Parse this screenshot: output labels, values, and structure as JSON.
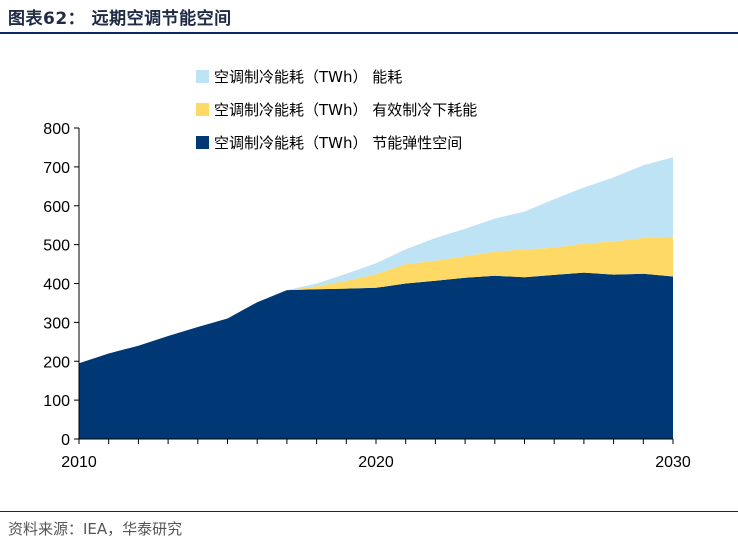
{
  "header": {
    "title": "图表62：  远期空调节能空间"
  },
  "footer": {
    "source": "资料来源：IEA，华泰研究"
  },
  "colors": {
    "heading": "#1f2a44",
    "rule": "#0a2a66",
    "series_bottom": "#003876",
    "series_middle": "#ffd966",
    "series_top": "#bde3f5"
  },
  "chart_data": {
    "type": "area",
    "stacked": true,
    "x": [
      2010,
      2011,
      2012,
      2013,
      2014,
      2015,
      2016,
      2017,
      2018,
      2019,
      2020,
      2021,
      2022,
      2023,
      2024,
      2025,
      2026,
      2027,
      2028,
      2029,
      2030
    ],
    "series": [
      {
        "name": "空调制冷能耗（TWh） 节能弹性空间",
        "color": "#003876",
        "values": [
          195,
          220,
          240,
          265,
          288,
          310,
          352,
          383,
          385,
          387,
          389,
          400,
          407,
          415,
          420,
          416,
          422,
          428,
          423,
          425,
          418
        ]
      },
      {
        "name": "空调制冷能耗（TWh） 有效制冷下耗能",
        "color": "#ffd966",
        "values": [
          0,
          0,
          0,
          0,
          0,
          0,
          0,
          0,
          8,
          20,
          35,
          50,
          52,
          55,
          62,
          72,
          70,
          75,
          85,
          92,
          102
        ]
      },
      {
        "name": "空调制冷能耗（TWh） 能耗",
        "color": "#bde3f5",
        "values": [
          0,
          0,
          0,
          0,
          0,
          0,
          0,
          0,
          7,
          18,
          28,
          38,
          58,
          71,
          85,
          97,
          125,
          144,
          165,
          187,
          205
        ]
      }
    ],
    "legend_order": [
      2,
      1,
      0
    ],
    "legend_position": "top-left",
    "xlim": [
      2010,
      2030
    ],
    "ylim": [
      0,
      800
    ],
    "xticks": [
      "2010",
      "2020",
      "2030"
    ],
    "yticks": [
      "0",
      "100",
      "200",
      "300",
      "400",
      "500",
      "600",
      "700",
      "800"
    ],
    "title": "",
    "xlabel": "",
    "ylabel": "",
    "grid": false
  }
}
